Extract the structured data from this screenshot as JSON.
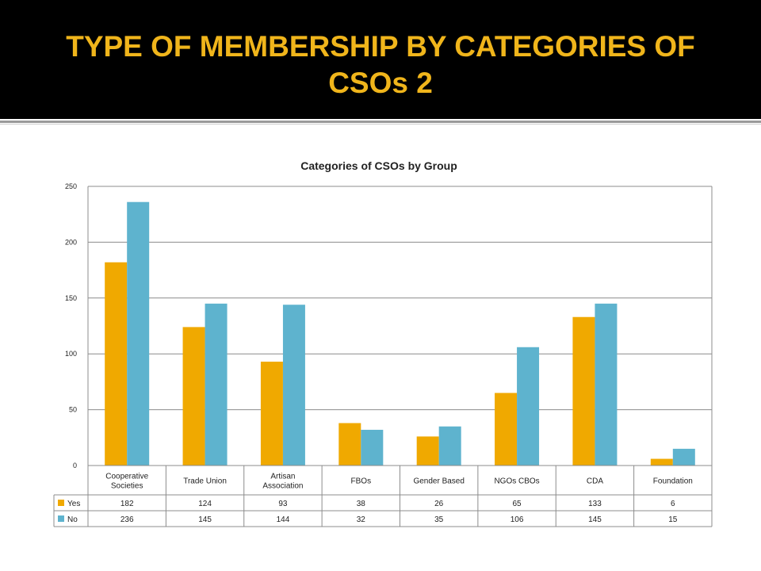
{
  "header": {
    "title_line1": "TYPE OF MEMBERSHIP BY CATEGORIES OF",
    "title_line2": "CSOs 2"
  },
  "colors": {
    "header_bg": "#000000",
    "title_text": "#f0b51b",
    "yes": "#f0a900",
    "no": "#5eb3ce"
  },
  "chart_data": {
    "type": "bar",
    "title": "Categories of CSOs by Group",
    "categories": [
      [
        "Cooperative",
        "Societies"
      ],
      [
        "Trade Union"
      ],
      [
        "Artisan",
        "Association"
      ],
      [
        "FBOs"
      ],
      [
        "Gender Based"
      ],
      [
        "NGOs CBOs"
      ],
      [
        "CDA"
      ],
      [
        "Foundation"
      ]
    ],
    "series": [
      {
        "name": "Yes",
        "values": [
          182,
          124,
          93,
          38,
          26,
          65,
          133,
          6
        ],
        "color": "#f0a900"
      },
      {
        "name": "No",
        "values": [
          236,
          145,
          144,
          32,
          35,
          106,
          145,
          15
        ],
        "color": "#5eb3ce"
      }
    ],
    "ylim": [
      0,
      250
    ],
    "yticks": [
      0,
      50,
      100,
      150,
      200,
      250
    ],
    "grid": true,
    "legend": "data table below chart"
  }
}
